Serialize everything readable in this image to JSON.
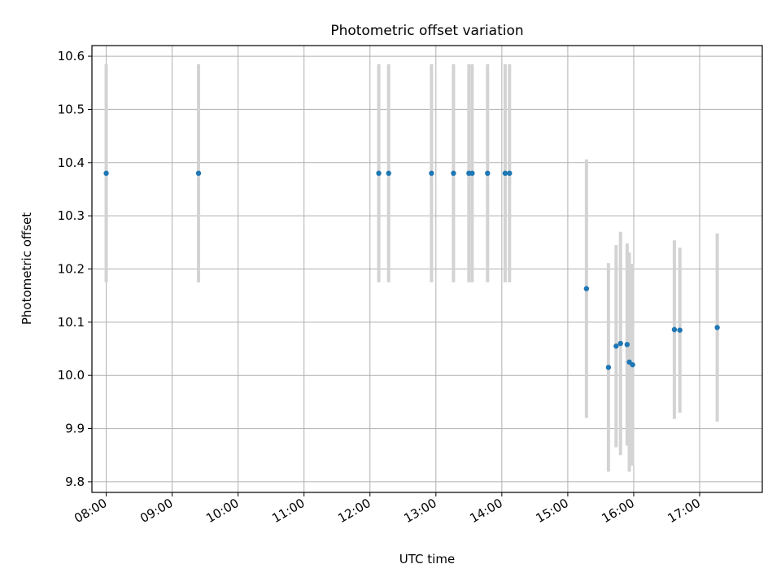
{
  "chart_data": {
    "type": "scatter",
    "title": "Photometric offset variation",
    "xlabel": "UTC time",
    "ylabel": "Photometric offset",
    "x_ticks": [
      "08:00",
      "09:00",
      "10:00",
      "11:00",
      "12:00",
      "13:00",
      "14:00",
      "15:00",
      "16:00",
      "17:00"
    ],
    "xlim": [
      "07:47",
      "17:57"
    ],
    "ylim": [
      9.78,
      10.62
    ],
    "y_ticks": [
      9.8,
      9.9,
      10.0,
      10.1,
      10.2,
      10.3,
      10.4,
      10.5,
      10.6
    ],
    "grid": true,
    "colors": {
      "point": "#1f77b4",
      "errorbar": "#d3d3d3",
      "grid": "#b0b0b0"
    },
    "points": [
      {
        "x": "08:00",
        "y": 10.38,
        "err": 0.205
      },
      {
        "x": "09:24",
        "y": 10.38,
        "err": 0.205
      },
      {
        "x": "12:08",
        "y": 10.38,
        "err": 0.205
      },
      {
        "x": "12:17",
        "y": 10.38,
        "err": 0.205
      },
      {
        "x": "12:56",
        "y": 10.38,
        "err": 0.205
      },
      {
        "x": "13:16",
        "y": 10.38,
        "err": 0.205
      },
      {
        "x": "13:30",
        "y": 10.38,
        "err": 0.205
      },
      {
        "x": "13:33",
        "y": 10.38,
        "err": 0.205
      },
      {
        "x": "13:47",
        "y": 10.38,
        "err": 0.205
      },
      {
        "x": "14:03",
        "y": 10.38,
        "err": 0.205
      },
      {
        "x": "14:07",
        "y": 10.38,
        "err": 0.205
      },
      {
        "x": "15:17",
        "y": 10.163,
        "err": 0.243
      },
      {
        "x": "15:37",
        "y": 10.015,
        "err": 0.196
      },
      {
        "x": "15:44",
        "y": 10.055,
        "err": 0.19
      },
      {
        "x": "15:48",
        "y": 10.06,
        "err": 0.21
      },
      {
        "x": "15:54",
        "y": 10.058,
        "err": 0.19
      },
      {
        "x": "15:56",
        "y": 10.025,
        "err": 0.206
      },
      {
        "x": "15:59",
        "y": 10.02,
        "err": 0.19
      },
      {
        "x": "16:37",
        "y": 10.086,
        "err": 0.168
      },
      {
        "x": "16:42",
        "y": 10.085,
        "err": 0.155
      },
      {
        "x": "17:16",
        "y": 10.09,
        "err": 0.177
      }
    ]
  }
}
